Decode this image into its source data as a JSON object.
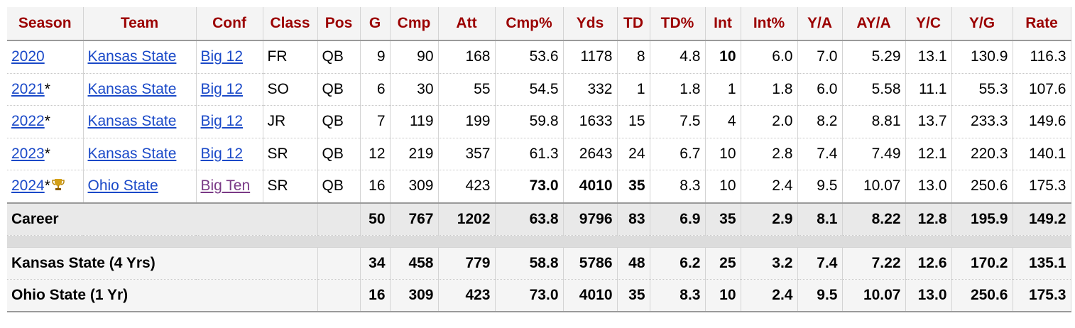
{
  "table": {
    "columns": [
      "Season",
      "Team",
      "Conf",
      "Class",
      "Pos",
      "G",
      "Cmp",
      "Att",
      "Cmp%",
      "Yds",
      "TD",
      "TD%",
      "Int",
      "Int%",
      "Y/A",
      "AY/A",
      "Y/C",
      "Y/G",
      "Rate"
    ],
    "rows": [
      {
        "cells": [
          "2020",
          "Kansas State",
          "Big 12",
          "FR",
          "QB",
          "9",
          "90",
          "168",
          "53.6",
          "1178",
          "8",
          "4.8",
          "10",
          "6.0",
          "7.0",
          "5.29",
          "13.1",
          "130.9",
          "116.3"
        ],
        "bold": [
          12
        ]
      },
      {
        "cells": [
          "2021",
          "Kansas State",
          "Big 12",
          "SO",
          "QB",
          "6",
          "30",
          "55",
          "54.5",
          "332",
          "1",
          "1.8",
          "1",
          "1.8",
          "6.0",
          "5.58",
          "11.1",
          "55.3",
          "107.6"
        ],
        "season_mark": "*"
      },
      {
        "cells": [
          "2022",
          "Kansas State",
          "Big 12",
          "JR",
          "QB",
          "7",
          "119",
          "199",
          "59.8",
          "1633",
          "15",
          "7.5",
          "4",
          "2.0",
          "8.2",
          "8.81",
          "13.7",
          "233.3",
          "149.6"
        ],
        "season_mark": "*"
      },
      {
        "cells": [
          "2023",
          "Kansas State",
          "Big 12",
          "SR",
          "QB",
          "12",
          "219",
          "357",
          "61.3",
          "2643",
          "24",
          "6.7",
          "10",
          "2.8",
          "7.4",
          "7.49",
          "12.1",
          "220.3",
          "140.1"
        ],
        "season_mark": "*"
      },
      {
        "cells": [
          "2024",
          "Ohio State",
          "Big Ten",
          "SR",
          "QB",
          "16",
          "309",
          "423",
          "73.0",
          "4010",
          "35",
          "8.3",
          "10",
          "2.4",
          "9.5",
          "10.07",
          "13.0",
          "250.6",
          "175.3"
        ],
        "season_mark": "*",
        "award_icon": true,
        "bold": [
          8,
          9,
          10
        ],
        "visited": [
          2
        ]
      }
    ],
    "summary": [
      {
        "label": "Career",
        "stats": [
          "50",
          "767",
          "1202",
          "63.8",
          "9796",
          "83",
          "6.9",
          "35",
          "2.9",
          "8.1",
          "8.22",
          "12.8",
          "195.9",
          "149.2"
        ],
        "shaded": true
      },
      {
        "label": "Kansas State (4 Yrs)",
        "stats": [
          "34",
          "458",
          "779",
          "58.8",
          "5786",
          "48",
          "6.2",
          "25",
          "3.2",
          "7.4",
          "7.22",
          "12.6",
          "170.2",
          "135.1"
        ],
        "gap_before": true
      },
      {
        "label": "Ohio State (1 Yr)",
        "stats": [
          "16",
          "309",
          "423",
          "73.0",
          "4010",
          "35",
          "8.3",
          "10",
          "2.4",
          "9.5",
          "10.07",
          "13.0",
          "250.6",
          "175.3"
        ]
      }
    ]
  }
}
